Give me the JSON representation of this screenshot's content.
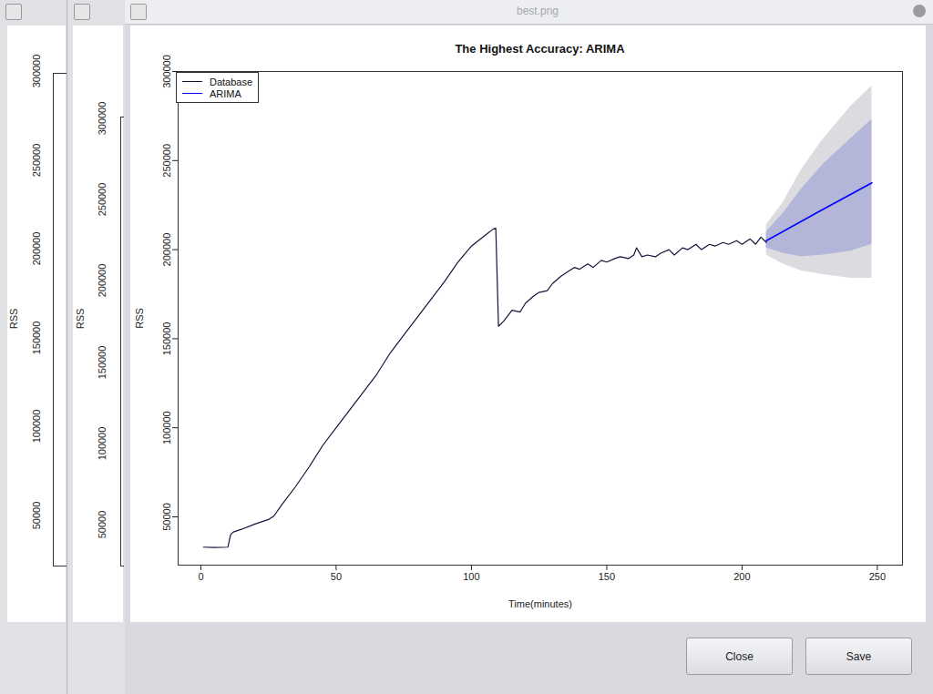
{
  "window": {
    "title": "best.png",
    "buttons": [
      "Close",
      "Save"
    ]
  },
  "background_windows": [
    {
      "ylabel": "RSS",
      "yticks": [
        50000,
        100000,
        150000,
        200000,
        250000,
        300000
      ]
    },
    {
      "ylabel": "RSS",
      "yticks": [
        50000,
        100000,
        150000,
        200000,
        250000,
        300000
      ]
    }
  ],
  "chart_data": {
    "type": "line",
    "title": "The Highest Accuracy: ARIMA",
    "x_label": "Time(minutes)",
    "y_label": "RSS",
    "xlim": [
      -8.4,
      259.3
    ],
    "ylim": [
      22900,
      300000
    ],
    "xticks": [
      0,
      50,
      100,
      150,
      200,
      250
    ],
    "yticks": [
      50000,
      100000,
      150000,
      200000,
      250000,
      300000
    ],
    "legend": "top-left",
    "series": [
      {
        "name": "Database",
        "color": "#14143a",
        "type": "line",
        "x": [
          1,
          5,
          10,
          11,
          12,
          15,
          20,
          25,
          27,
          30,
          35,
          40,
          45,
          50,
          55,
          60,
          65,
          70,
          75,
          80,
          85,
          90,
          95,
          100,
          105,
          108,
          109,
          110,
          112,
          115,
          118,
          120,
          123,
          125,
          128,
          130,
          133,
          135,
          138,
          140,
          143,
          145,
          148,
          150,
          153,
          155,
          158,
          160,
          161,
          163,
          165,
          168,
          170,
          173,
          175,
          178,
          180,
          183,
          185,
          188,
          190,
          193,
          195,
          198,
          200,
          203,
          205,
          207,
          209
        ],
        "values": [
          33000,
          32800,
          33000,
          40000,
          41500,
          43000,
          46000,
          48500,
          50500,
          57000,
          67000,
          78000,
          90000,
          100000,
          110000,
          120000,
          130000,
          142000,
          152000,
          162000,
          172000,
          182000,
          193000,
          202000,
          208000,
          211500,
          212000,
          157000,
          160000,
          166000,
          165000,
          170000,
          174000,
          176000,
          177000,
          181000,
          185000,
          187000,
          190000,
          189000,
          192000,
          190000,
          194000,
          193000,
          195000,
          196000,
          195000,
          197000,
          201000,
          196000,
          197000,
          196000,
          198000,
          200000,
          197000,
          201000,
          200000,
          203000,
          200000,
          203000,
          202000,
          204000,
          203000,
          205000,
          203000,
          206000,
          203000,
          207000,
          204000
        ]
      },
      {
        "name": "ARIMA",
        "color": "#0000ff",
        "type": "line",
        "x": [
          209,
          228,
          248
        ],
        "values": [
          205000,
          221000,
          237500
        ]
      }
    ],
    "intervals": [
      {
        "color": "#dcdce0",
        "x": [
          209,
          215,
          222,
          230,
          240,
          248
        ],
        "lower": [
          197000,
          192000,
          188000,
          186000,
          184000,
          184000
        ],
        "upper": [
          214000,
          226000,
          245000,
          262000,
          280000,
          292000
        ]
      },
      {
        "color": "#b3b6d9",
        "x": [
          209,
          215,
          222,
          230,
          240,
          248
        ],
        "lower": [
          201000,
          198000,
          196000,
          197000,
          199000,
          203000
        ],
        "upper": [
          210000,
          220000,
          234000,
          248000,
          262000,
          273000
        ]
      }
    ]
  }
}
